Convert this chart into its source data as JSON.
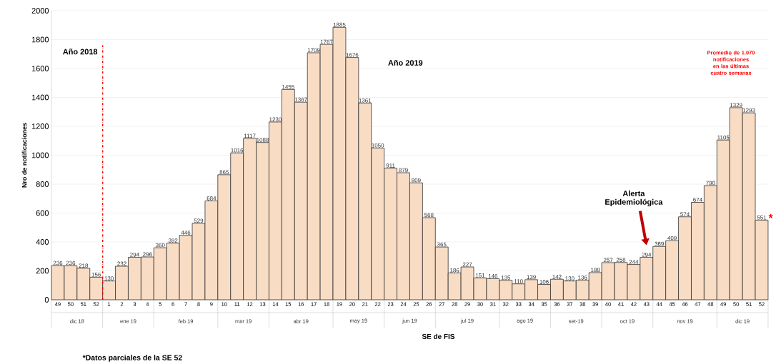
{
  "chart_data": {
    "type": "bar",
    "xlabel": "SE de FIS",
    "ylabel": "Nro de notificaciones",
    "categories": [
      "49",
      "50",
      "51",
      "52",
      "1",
      "2",
      "3",
      "4",
      "5",
      "6",
      "7",
      "8",
      "9",
      "10",
      "11",
      "12",
      "13",
      "14",
      "15",
      "16",
      "17",
      "18",
      "19",
      "20",
      "21",
      "22",
      "23",
      "24",
      "25",
      "26",
      "27",
      "28",
      "29",
      "30",
      "31",
      "32",
      "33",
      "34",
      "35",
      "36",
      "37",
      "38",
      "39",
      "40",
      "41",
      "42",
      "43",
      "44",
      "45",
      "46",
      "47",
      "48",
      "49",
      "50",
      "51",
      "52"
    ],
    "values": [
      236,
      236,
      218,
      156,
      130,
      232,
      294,
      296,
      360,
      392,
      446,
      529,
      684,
      865,
      1016,
      1117,
      1088,
      1230,
      1455,
      1367,
      1709,
      1767,
      1885,
      1676,
      1361,
      1050,
      911,
      879,
      809,
      568,
      365,
      186,
      227,
      151,
      146,
      135,
      110,
      139,
      106,
      142,
      130,
      136,
      188,
      257,
      258,
      244,
      294,
      369,
      409,
      574,
      674,
      790,
      1105,
      1329,
      1293,
      551
    ],
    "color": "#f9dcc4",
    "data_labels": true,
    "ylim": [
      0,
      2000
    ],
    "yticks": [
      0,
      200,
      400,
      600,
      800,
      1000,
      1200,
      1400,
      1600,
      1800,
      2000
    ],
    "grid": "y",
    "ref_lines": [
      {
        "axis": "x",
        "value": "1",
        "color": "#ff0000",
        "line_style": "dashdot"
      }
    ],
    "annotations": [
      "Año 2018",
      "Año 2019",
      "Promedio de  1.070 notificaciones en las últimas cuatro semanas",
      "Alerta Epidemiológica",
      "*",
      "*Datos parciales de la SE 52",
      "dic 18",
      "ene 19",
      "feb 19",
      "mar 19",
      "abr 19",
      "may 19",
      "jun 19",
      "jul 19",
      "ago 19",
      "set-19",
      "oct 19",
      "nov 19",
      "dic 19"
    ]
  }
}
